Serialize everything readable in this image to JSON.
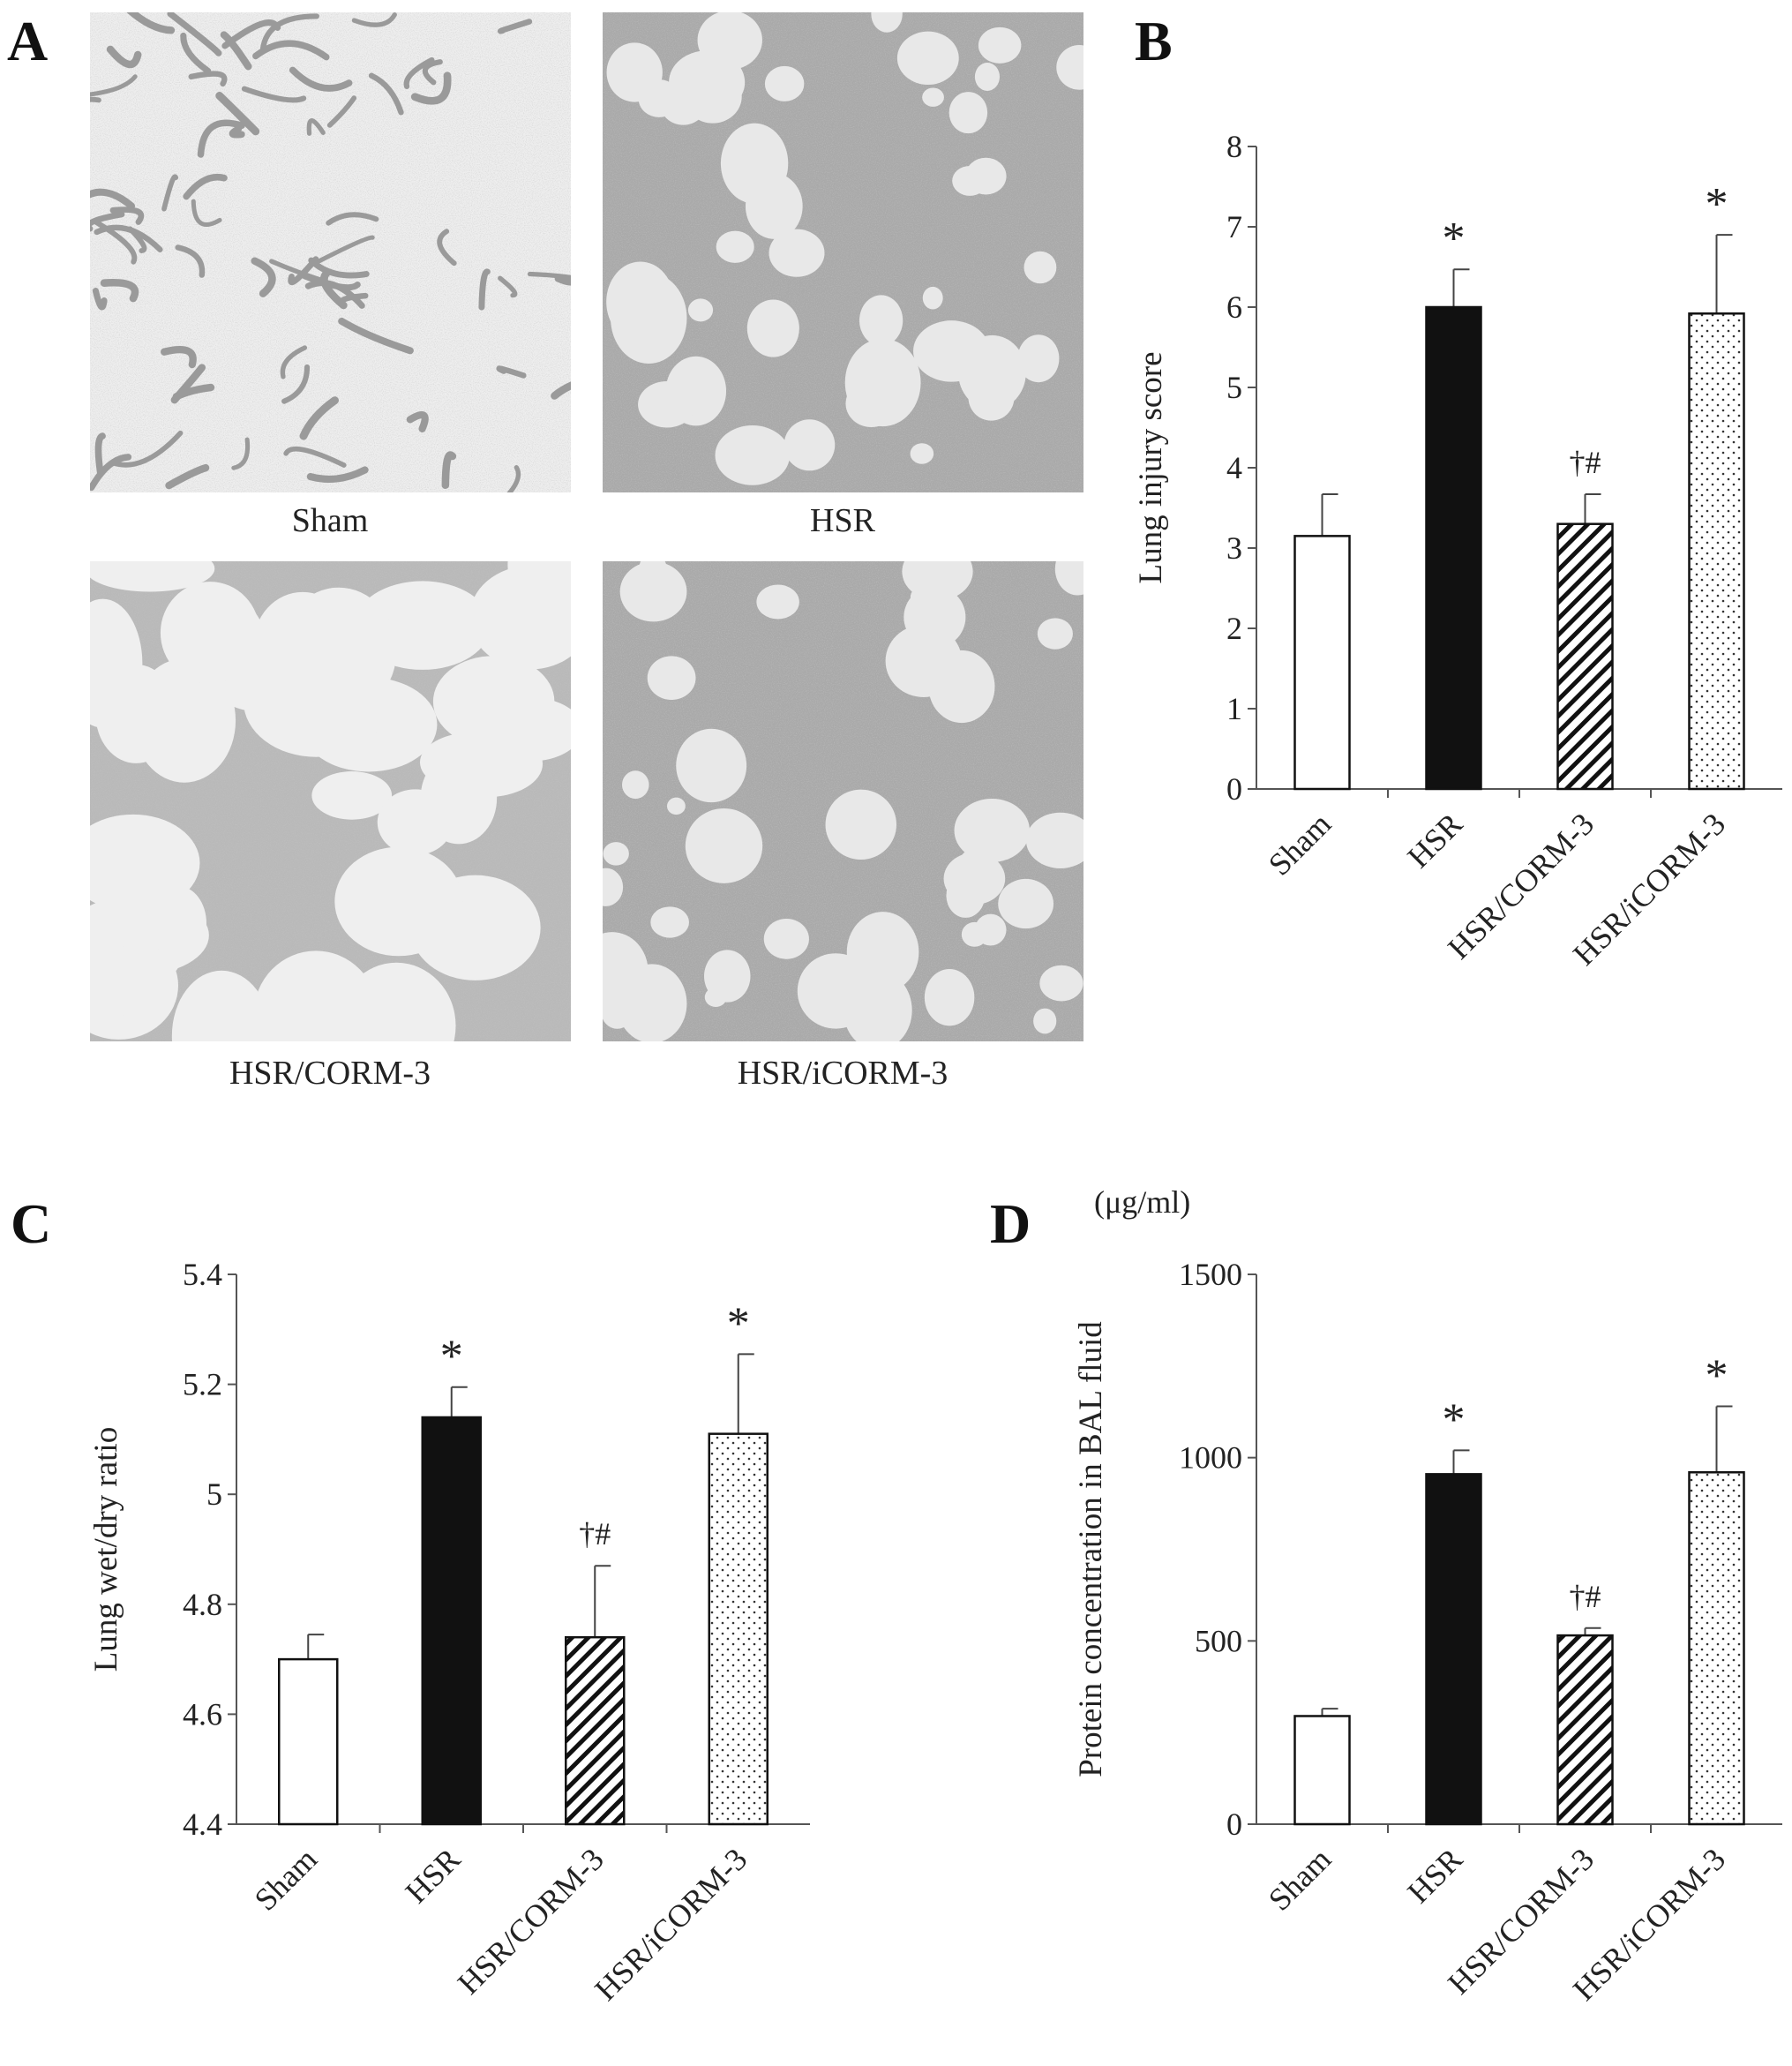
{
  "panel_a": {
    "letter": "A",
    "images": [
      {
        "caption": "Sham",
        "style": "sparse"
      },
      {
        "caption": "HSR",
        "style": "dense"
      },
      {
        "caption": "HSR/CORM-3",
        "style": "open"
      },
      {
        "caption": "HSR/iCORM-3",
        "style": "dense"
      }
    ]
  },
  "chart_data": [
    {
      "type": "bar",
      "panel": "B",
      "ylabel": "Lung injury score",
      "unit": "",
      "categories": [
        "Sham",
        "HSR",
        "HSR/CORM-3",
        "HSR/iCORM-3"
      ],
      "values": [
        3.15,
        6.0,
        3.3,
        5.92
      ],
      "errors": [
        0.52,
        0.47,
        0.37,
        0.98
      ],
      "annotations": [
        "",
        "*",
        "†#",
        "*"
      ],
      "ylim": [
        0,
        8
      ],
      "yticks": [
        "0",
        "1",
        "2",
        "3",
        "4",
        "5",
        "6",
        "7",
        "8"
      ],
      "fills": [
        "white",
        "black",
        "hatch",
        "dots"
      ]
    },
    {
      "type": "bar",
      "panel": "C",
      "ylabel": "Lung wet/dry ratio",
      "unit": "",
      "categories": [
        "Sham",
        "HSR",
        "HSR/CORM-3",
        "HSR/iCORM-3"
      ],
      "values": [
        4.7,
        5.14,
        4.74,
        5.11
      ],
      "errors": [
        0.045,
        0.055,
        0.13,
        0.145
      ],
      "annotations": [
        "",
        "*",
        "†#",
        "*"
      ],
      "ylim": [
        4.4,
        5.4
      ],
      "yticks": [
        "4.4",
        "4.6",
        "4.8",
        "5",
        "5.2",
        "5.4"
      ],
      "fills": [
        "white",
        "black",
        "hatch",
        "dots"
      ]
    },
    {
      "type": "bar",
      "panel": "D",
      "ylabel": "Protein concentration in BAL fluid",
      "unit": "(μg/ml)",
      "categories": [
        "Sham",
        "HSR",
        "HSR/CORM-3",
        "HSR/iCORM-3"
      ],
      "values": [
        295,
        955,
        515,
        960
      ],
      "errors": [
        20,
        65,
        20,
        180
      ],
      "annotations": [
        "",
        "*",
        "†#",
        "*"
      ],
      "ylim": [
        0,
        1500
      ],
      "yticks": [
        "0",
        "500",
        "1000",
        "1500"
      ],
      "fills": [
        "white",
        "black",
        "hatch",
        "dots"
      ]
    }
  ]
}
